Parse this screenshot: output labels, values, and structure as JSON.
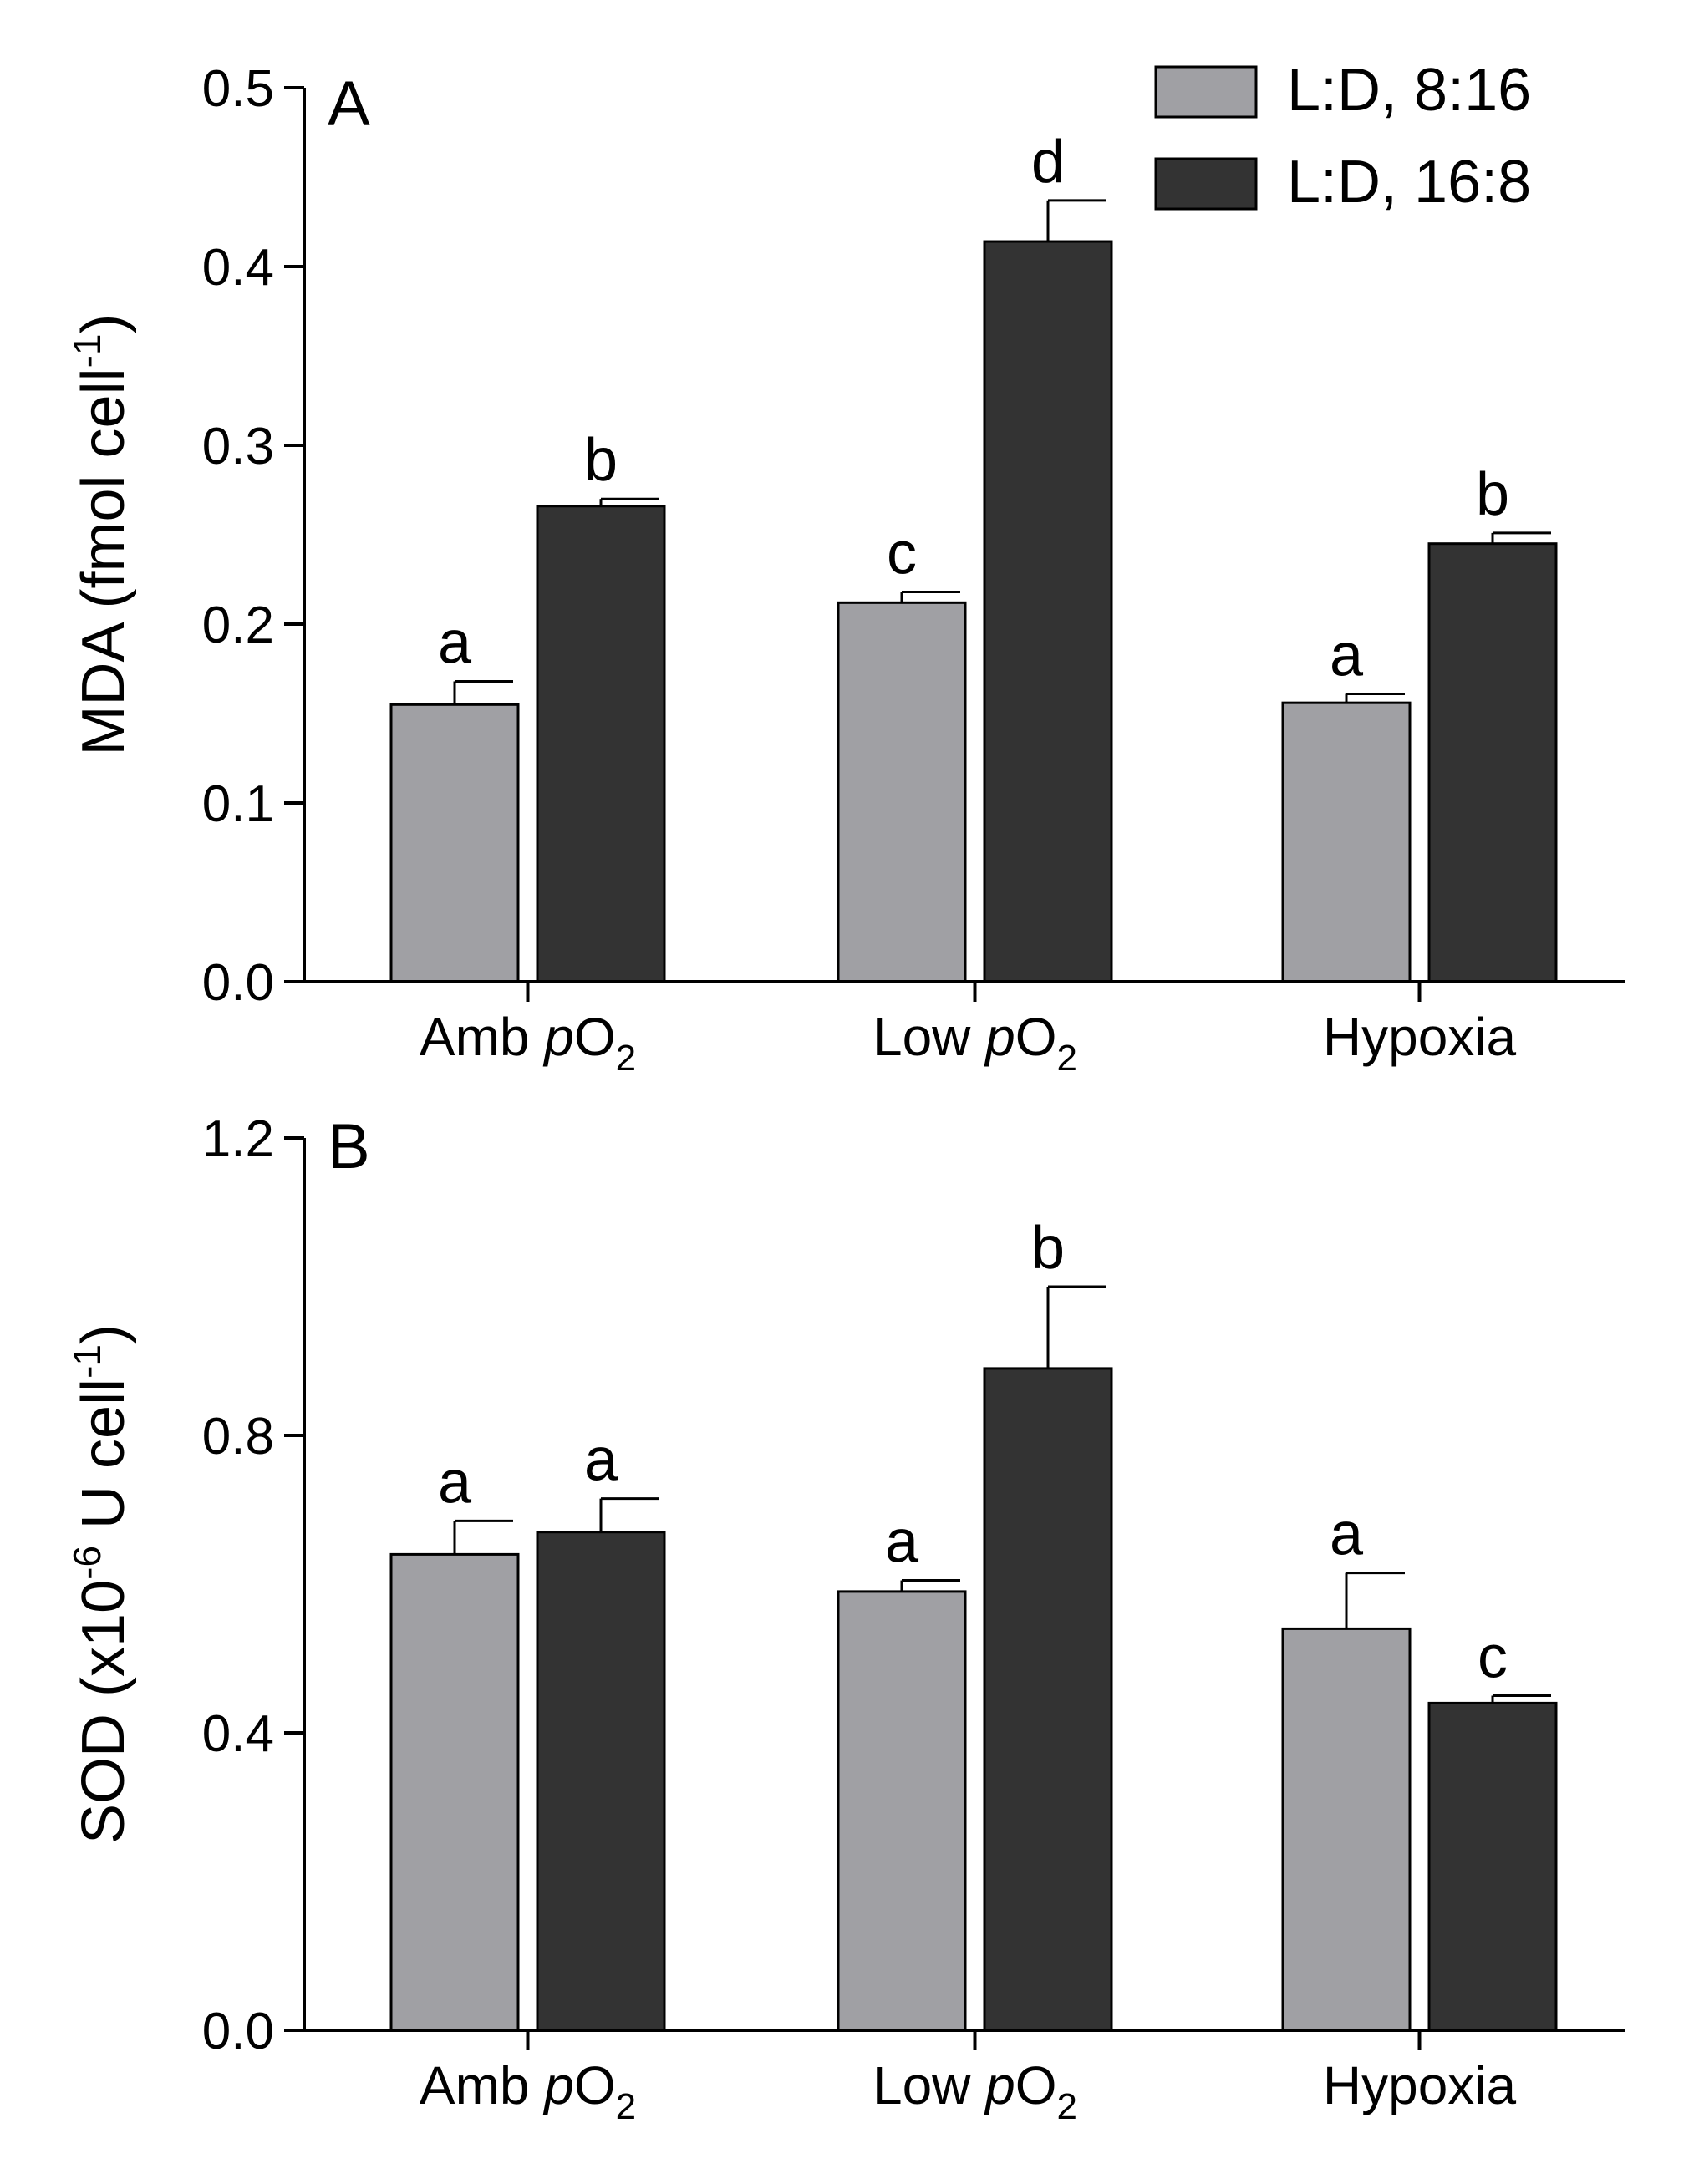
{
  "chart_data": [
    {
      "type": "bar",
      "panel": "A",
      "ylabel": "MDA (fmol cell",
      "ylabel_sup": "-1",
      "ylabel_close": ")",
      "ylim": [
        0,
        0.5
      ],
      "yticks": [
        0.0,
        0.1,
        0.2,
        0.3,
        0.4,
        0.5
      ],
      "ytick_labels": [
        "0.0",
        "0.1",
        "0.2",
        "0.3",
        "0.4",
        "0.5"
      ],
      "categories": [
        {
          "pre": "Amb ",
          "italic": "p",
          "main": "O",
          "sub": "2"
        },
        {
          "pre": "Low ",
          "italic": "p",
          "main": "O",
          "sub": "2"
        },
        {
          "pre": "Hypoxia",
          "italic": "",
          "main": "",
          "sub": ""
        }
      ],
      "legend": {
        "placement": "top-right"
      },
      "series": [
        {
          "name": "L:D, 8:16",
          "color": "#a0a0a4",
          "values": [
            0.155,
            0.212,
            0.156
          ],
          "errors": [
            0.013,
            0.006,
            0.005
          ],
          "letters": [
            "a",
            "c",
            "a"
          ]
        },
        {
          "name": "L:D, 16:8",
          "color": "#333333",
          "values": [
            0.266,
            0.414,
            0.245
          ],
          "errors": [
            0.004,
            0.023,
            0.006
          ],
          "letters": [
            "b",
            "d",
            "b"
          ]
        }
      ]
    },
    {
      "type": "bar",
      "panel": "B",
      "ylabel": "SOD (x10",
      "ylabel_sup": "-6",
      "ylabel_mid": " U cell",
      "ylabel_sup2": "-1",
      "ylabel_close": ")",
      "ylim": [
        0,
        1.2
      ],
      "yticks": [
        0.0,
        0.4,
        0.8,
        1.2
      ],
      "ytick_labels": [
        "0.0",
        "0.4",
        "0.8",
        "1.2"
      ],
      "categories": [
        {
          "pre": "Amb ",
          "italic": "p",
          "main": "O",
          "sub": "2"
        },
        {
          "pre": "Low ",
          "italic": "p",
          "main": "O",
          "sub": "2"
        },
        {
          "pre": "Hypoxia",
          "italic": "",
          "main": "",
          "sub": ""
        }
      ],
      "series": [
        {
          "name": "L:D, 8:16",
          "color": "#a0a0a4",
          "values": [
            0.64,
            0.59,
            0.54
          ],
          "errors": [
            0.045,
            0.015,
            0.075
          ],
          "letters": [
            "a",
            "a",
            "a"
          ]
        },
        {
          "name": "L:D, 16:8",
          "color": "#333333",
          "values": [
            0.67,
            0.89,
            0.44
          ],
          "errors": [
            0.045,
            0.11,
            0.01
          ],
          "letters": [
            "a",
            "b",
            "c"
          ]
        }
      ]
    }
  ]
}
